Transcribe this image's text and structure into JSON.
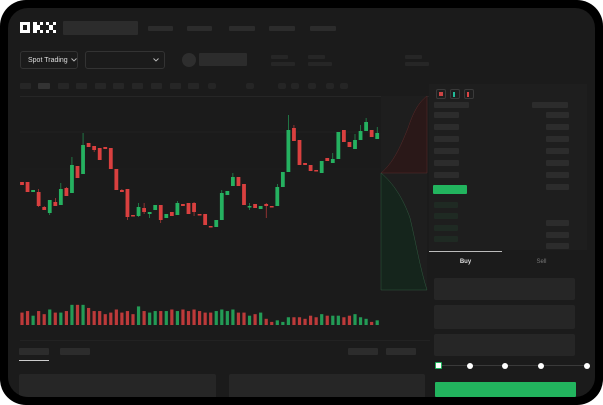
{
  "brand": {
    "logo": "OKX"
  },
  "toolbar": {
    "market_selector": "Spot Trading",
    "pair_selector": "",
    "chevron": "chevron-down-icon"
  },
  "order_panel": {
    "tabs": [
      {
        "label": "Buy",
        "active": true
      },
      {
        "label": "Sell",
        "active": false
      }
    ],
    "slider_percent": 0,
    "submit_color": "#22b45e"
  },
  "colors": {
    "up": "#25b160",
    "down": "#d9403f",
    "background": "#1b1b1b"
  },
  "chart_data": {
    "type": "candlestick",
    "candles": [
      [
        118,
        118,
        115,
        115
      ],
      [
        118,
        118,
        108,
        108
      ],
      [
        108,
        110,
        108,
        110
      ],
      [
        108,
        111,
        93,
        94
      ],
      [
        93,
        94,
        90,
        90
      ],
      [
        87,
        100,
        85,
        100
      ],
      [
        98,
        102,
        94,
        94
      ],
      [
        95,
        117,
        95,
        111
      ],
      [
        112,
        113,
        104,
        104
      ],
      [
        107,
        143,
        107,
        135
      ],
      [
        134,
        134,
        122,
        122
      ],
      [
        126,
        167,
        126,
        155
      ],
      [
        157,
        157,
        153,
        153
      ],
      [
        154,
        154,
        148,
        150
      ],
      [
        152,
        152,
        140,
        140
      ],
      [
        153,
        153,
        151,
        151
      ],
      [
        152,
        152,
        131,
        131
      ],
      [
        131,
        131,
        110,
        110
      ],
      [
        110,
        111,
        108,
        108
      ],
      [
        111,
        111,
        80,
        83
      ],
      [
        85,
        85,
        84,
        84
      ],
      [
        84,
        97,
        83,
        93
      ],
      [
        92,
        97,
        86,
        88
      ],
      [
        86,
        88,
        82,
        88
      ],
      [
        90,
        95,
        90,
        95
      ],
      [
        95,
        95,
        77,
        80
      ],
      [
        82,
        86,
        82,
        86
      ],
      [
        88,
        88,
        84,
        84
      ],
      [
        85,
        99,
        85,
        97
      ],
      [
        96,
        96,
        94,
        94
      ],
      [
        97,
        97,
        86,
        86
      ],
      [
        97,
        98,
        84,
        88
      ],
      [
        86,
        86,
        85,
        85
      ],
      [
        86,
        86,
        75,
        75
      ],
      [
        74,
        74,
        73,
        73
      ],
      [
        73,
        80,
        73,
        80
      ],
      [
        80,
        110,
        80,
        107
      ],
      [
        105,
        109,
        105,
        109
      ],
      [
        114,
        127,
        114,
        123
      ],
      [
        123,
        123,
        114,
        114
      ],
      [
        116,
        116,
        95,
        95
      ],
      [
        93,
        97,
        90,
        94
      ],
      [
        96,
        96,
        92,
        92
      ],
      [
        91,
        94,
        91,
        94
      ],
      [
        96,
        97,
        82,
        94
      ],
      [
        94,
        94,
        93,
        93
      ],
      [
        94,
        116,
        94,
        113
      ],
      [
        113,
        128,
        113,
        128
      ],
      [
        128,
        185,
        128,
        170
      ],
      [
        172,
        175,
        159,
        159
      ],
      [
        160,
        160,
        135,
        135
      ],
      [
        137,
        137,
        135,
        135
      ],
      [
        135,
        135,
        129,
        129
      ],
      [
        130,
        130,
        129,
        129
      ],
      [
        127,
        139,
        127,
        139
      ],
      [
        142,
        142,
        139,
        139
      ],
      [
        137,
        147,
        137,
        141
      ],
      [
        141,
        168,
        141,
        168
      ],
      [
        170,
        170,
        158,
        158
      ],
      [
        158,
        158,
        153,
        153
      ],
      [
        151,
        166,
        151,
        160
      ],
      [
        160,
        175,
        160,
        169
      ],
      [
        169,
        182,
        169,
        178
      ],
      [
        170,
        170,
        163,
        163
      ],
      [
        161,
        173,
        161,
        167
      ]
    ],
    "volumes": [
      8,
      9,
      6,
      9,
      7,
      10,
      8,
      8,
      9,
      13,
      13,
      13,
      11,
      9,
      9,
      7,
      8,
      10,
      8,
      9,
      7,
      12,
      9,
      8,
      9,
      9,
      9,
      10,
      9,
      10,
      9,
      10,
      9,
      8,
      8,
      9,
      10,
      9,
      10,
      8,
      8,
      6,
      7,
      8,
      4,
      2,
      3,
      2,
      5,
      5,
      5,
      4,
      6,
      5,
      7,
      6,
      6,
      6,
      5,
      6,
      7,
      5,
      4,
      2,
      3
    ]
  }
}
